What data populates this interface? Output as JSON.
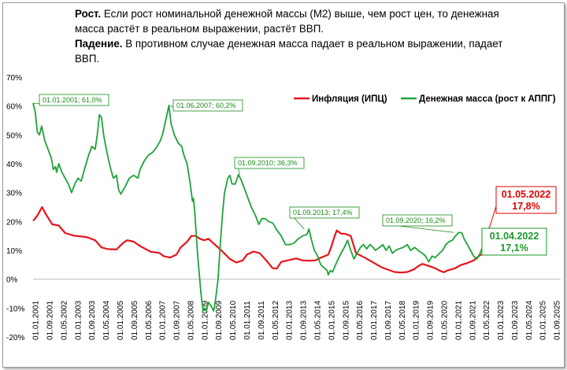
{
  "headline": {
    "growth_label": "Рост.",
    "growth_text": " Если рост номинальной денежной массы (М2) выше, чем рост цен,  то денежная масса растёт в реальном выражении, растёт ВВП.",
    "fall_label": "Падение.",
    "fall_text": " В противном случае денежная масса падает в реальном выражении, падает ВВП."
  },
  "colors": {
    "inflation": "#e8141c",
    "money": "#1fa33a"
  },
  "chart_data": {
    "type": "line",
    "title": "",
    "xlabel": "",
    "ylabel": "",
    "ylim": [
      -20,
      70
    ],
    "y_ticks": [
      70,
      60,
      50,
      40,
      30,
      20,
      10,
      0,
      -10,
      -20
    ],
    "y_tick_labels": [
      "70%",
      "60%",
      "50%",
      "40%",
      "30%",
      "20%",
      "10%",
      "0%",
      "-10%",
      "-20%"
    ],
    "x_range": [
      2001.0,
      2025.667
    ],
    "x_tick_labels": [
      "01.01.2001",
      "01.09.2001",
      "01.05.2002",
      "01.01.2003",
      "01.09.2003",
      "01.05.2004",
      "01.01.2005",
      "01.09.2005",
      "01.05.2006",
      "01.01.2007",
      "01.09.2007",
      "01.05.2008",
      "01.01.2009",
      "01.09.2009",
      "01.05.2010",
      "01.01.2011",
      "01.09.2011",
      "01.05.2012",
      "01.01.2013",
      "01.09.2013",
      "01.05.2014",
      "01.01.2015",
      "01.09.2015",
      "01.05.2016",
      "01.01.2017",
      "01.09.2017",
      "01.05.2018",
      "01.01.2019",
      "01.09.2019",
      "01.05.2020",
      "01.01.2021",
      "01.09.2021",
      "01.05.2022",
      "01.01.2023",
      "01.09.2023",
      "01.05.2024",
      "01.01.2025",
      "01.09.2025"
    ],
    "legend": {
      "position": "top-right"
    },
    "series": [
      {
        "name": "Инфляция (ИПЦ)",
        "color": "#e8141c",
        "points": [
          [
            2001.0,
            20.2
          ],
          [
            2001.2,
            22
          ],
          [
            2001.42,
            25
          ],
          [
            2001.6,
            22.5
          ],
          [
            2001.9,
            19
          ],
          [
            2002.2,
            18.6
          ],
          [
            2002.5,
            16
          ],
          [
            2002.9,
            15.1
          ],
          [
            2003.5,
            14.6
          ],
          [
            2003.9,
            13.5
          ],
          [
            2004.2,
            11
          ],
          [
            2004.5,
            10.4
          ],
          [
            2004.9,
            10.3
          ],
          [
            2005.2,
            12.5
          ],
          [
            2005.4,
            13.5
          ],
          [
            2005.7,
            13
          ],
          [
            2006.0,
            11.5
          ],
          [
            2006.5,
            9.5
          ],
          [
            2006.9,
            9.1
          ],
          [
            2007.1,
            8
          ],
          [
            2007.4,
            7.5
          ],
          [
            2007.7,
            8.5
          ],
          [
            2007.9,
            11
          ],
          [
            2008.2,
            13
          ],
          [
            2008.4,
            15
          ],
          [
            2008.6,
            15
          ],
          [
            2008.8,
            14
          ],
          [
            2009.0,
            13.5
          ],
          [
            2009.2,
            14
          ],
          [
            2009.5,
            12
          ],
          [
            2009.8,
            10
          ],
          [
            2010.2,
            7
          ],
          [
            2010.5,
            5.8
          ],
          [
            2010.8,
            6.5
          ],
          [
            2011.0,
            8.5
          ],
          [
            2011.3,
            9.6
          ],
          [
            2011.6,
            9
          ],
          [
            2011.9,
            6.5
          ],
          [
            2012.2,
            3.8
          ],
          [
            2012.4,
            3.7
          ],
          [
            2012.6,
            6
          ],
          [
            2012.9,
            6.5
          ],
          [
            2013.3,
            7.2
          ],
          [
            2013.6,
            6.5
          ],
          [
            2013.9,
            6.4
          ],
          [
            2014.2,
            6.5
          ],
          [
            2014.5,
            7.6
          ],
          [
            2014.8,
            8.5
          ],
          [
            2014.95,
            11.4
          ],
          [
            2015.1,
            15
          ],
          [
            2015.2,
            16.9
          ],
          [
            2015.4,
            15.8
          ],
          [
            2015.6,
            15.7
          ],
          [
            2015.85,
            15
          ],
          [
            2016.1,
            9
          ],
          [
            2016.5,
            7.5
          ],
          [
            2016.9,
            5.8
          ],
          [
            2017.3,
            4.1
          ],
          [
            2017.6,
            3.3
          ],
          [
            2017.9,
            2.5
          ],
          [
            2018.2,
            2.3
          ],
          [
            2018.5,
            2.5
          ],
          [
            2018.8,
            3.4
          ],
          [
            2019.0,
            4.5
          ],
          [
            2019.2,
            5.3
          ],
          [
            2019.5,
            4.6
          ],
          [
            2019.8,
            3.8
          ],
          [
            2020.0,
            3
          ],
          [
            2020.2,
            2.4
          ],
          [
            2020.4,
            3.1
          ],
          [
            2020.7,
            3.7
          ],
          [
            2021.0,
            4.9
          ],
          [
            2021.3,
            5.6
          ],
          [
            2021.6,
            6.5
          ],
          [
            2021.9,
            8.4
          ],
          [
            2022.1,
            8.7
          ],
          [
            2022.2,
            16.7
          ],
          [
            2022.33,
            17.8
          ]
        ]
      },
      {
        "name": "Денежная масса (рост к АППГ)",
        "color": "#1fa33a",
        "points": [
          [
            2001.0,
            61
          ],
          [
            2001.1,
            58
          ],
          [
            2001.2,
            51
          ],
          [
            2001.3,
            50
          ],
          [
            2001.4,
            53
          ],
          [
            2001.55,
            48
          ],
          [
            2001.7,
            45
          ],
          [
            2001.85,
            42
          ],
          [
            2001.95,
            38
          ],
          [
            2002.05,
            39
          ],
          [
            2002.1,
            37
          ],
          [
            2002.2,
            40
          ],
          [
            2002.35,
            37
          ],
          [
            2002.5,
            35
          ],
          [
            2002.65,
            33
          ],
          [
            2002.8,
            30
          ],
          [
            2002.95,
            33
          ],
          [
            2003.1,
            35
          ],
          [
            2003.25,
            34
          ],
          [
            2003.4,
            38
          ],
          [
            2003.6,
            43
          ],
          [
            2003.75,
            46
          ],
          [
            2003.9,
            45
          ],
          [
            2004.0,
            50
          ],
          [
            2004.1,
            57
          ],
          [
            2004.2,
            56
          ],
          [
            2004.3,
            50
          ],
          [
            2004.45,
            44
          ],
          [
            2004.6,
            39
          ],
          [
            2004.75,
            35
          ],
          [
            2004.9,
            36
          ],
          [
            2005.0,
            31
          ],
          [
            2005.1,
            29.5
          ],
          [
            2005.3,
            32
          ],
          [
            2005.5,
            35
          ],
          [
            2005.7,
            36
          ],
          [
            2005.9,
            35
          ],
          [
            2006.0,
            38
          ],
          [
            2006.2,
            41
          ],
          [
            2006.4,
            43
          ],
          [
            2006.6,
            44
          ],
          [
            2006.8,
            46
          ],
          [
            2006.95,
            48
          ],
          [
            2007.05,
            50
          ],
          [
            2007.2,
            55
          ],
          [
            2007.35,
            60.2
          ],
          [
            2007.45,
            54
          ],
          [
            2007.6,
            50
          ],
          [
            2007.8,
            47
          ],
          [
            2007.95,
            46
          ],
          [
            2008.05,
            43
          ],
          [
            2008.2,
            40
          ],
          [
            2008.35,
            33
          ],
          [
            2008.45,
            27
          ],
          [
            2008.5,
            28
          ],
          [
            2008.55,
            24
          ],
          [
            2008.7,
            8
          ],
          [
            2008.85,
            -5
          ],
          [
            2008.95,
            -11
          ],
          [
            2009.0,
            -10
          ],
          [
            2009.1,
            -11
          ],
          [
            2009.2,
            -8
          ],
          [
            2009.3,
            -9
          ],
          [
            2009.45,
            -11
          ],
          [
            2009.55,
            -6
          ],
          [
            2009.65,
            0
          ],
          [
            2009.75,
            12
          ],
          [
            2009.85,
            22
          ],
          [
            2009.95,
            30
          ],
          [
            2010.1,
            35
          ],
          [
            2010.2,
            36
          ],
          [
            2010.3,
            33
          ],
          [
            2010.45,
            33
          ],
          [
            2010.6,
            36.3
          ],
          [
            2010.75,
            34
          ],
          [
            2010.9,
            31
          ],
          [
            2011.05,
            28
          ],
          [
            2011.2,
            25
          ],
          [
            2011.4,
            22
          ],
          [
            2011.55,
            19
          ],
          [
            2011.7,
            21
          ],
          [
            2011.85,
            21
          ],
          [
            2012.0,
            20
          ],
          [
            2012.2,
            19.5
          ],
          [
            2012.4,
            17
          ],
          [
            2012.6,
            15
          ],
          [
            2012.8,
            12
          ],
          [
            2013.0,
            12
          ],
          [
            2013.2,
            12.5
          ],
          [
            2013.4,
            14
          ],
          [
            2013.6,
            15
          ],
          [
            2013.8,
            15.5
          ],
          [
            2013.9,
            17.4
          ],
          [
            2014.0,
            14
          ],
          [
            2014.15,
            10
          ],
          [
            2014.3,
            8
          ],
          [
            2014.45,
            5
          ],
          [
            2014.6,
            4
          ],
          [
            2014.75,
            3
          ],
          [
            2014.8,
            1.5
          ],
          [
            2014.9,
            3
          ],
          [
            2015.0,
            2.5
          ],
          [
            2015.2,
            6
          ],
          [
            2015.4,
            9
          ],
          [
            2015.55,
            11
          ],
          [
            2015.7,
            13.5
          ],
          [
            2015.85,
            10
          ],
          [
            2016.0,
            7
          ],
          [
            2016.15,
            9
          ],
          [
            2016.3,
            11
          ],
          [
            2016.45,
            12
          ],
          [
            2016.6,
            10.5
          ],
          [
            2016.75,
            12
          ],
          [
            2016.9,
            11
          ],
          [
            2017.0,
            10
          ],
          [
            2017.2,
            11
          ],
          [
            2017.35,
            12
          ],
          [
            2017.5,
            10
          ],
          [
            2017.65,
            11.5
          ],
          [
            2017.8,
            9
          ],
          [
            2017.95,
            10
          ],
          [
            2018.1,
            10.5
          ],
          [
            2018.3,
            11
          ],
          [
            2018.5,
            12
          ],
          [
            2018.65,
            10
          ],
          [
            2018.85,
            11
          ],
          [
            2019.0,
            10
          ],
          [
            2019.2,
            9
          ],
          [
            2019.35,
            8
          ],
          [
            2019.5,
            6
          ],
          [
            2019.65,
            8
          ],
          [
            2019.8,
            7.5
          ],
          [
            2020.0,
            9
          ],
          [
            2020.15,
            10
          ],
          [
            2020.3,
            12
          ],
          [
            2020.45,
            13
          ],
          [
            2020.6,
            13.5
          ],
          [
            2020.75,
            15
          ],
          [
            2020.9,
            16.2
          ],
          [
            2021.05,
            16
          ],
          [
            2021.15,
            14
          ],
          [
            2021.3,
            12
          ],
          [
            2021.45,
            10
          ],
          [
            2021.6,
            8
          ],
          [
            2021.75,
            7
          ],
          [
            2021.9,
            9
          ],
          [
            2022.05,
            12
          ],
          [
            2022.15,
            14
          ],
          [
            2022.25,
            17.1
          ]
        ]
      }
    ],
    "annotations": [
      {
        "text": "01.01.2001; 61,0%",
        "series": "money",
        "x": 2001.0,
        "y": 61.0
      },
      {
        "text": "01.06.2007; 60,2%",
        "series": "money",
        "x": 2007.42,
        "y": 60.2
      },
      {
        "text": "01.09.2010; 36,3%",
        "series": "money",
        "x": 2010.67,
        "y": 36.3
      },
      {
        "text": "01.09.2013; 17,4%",
        "series": "money",
        "x": 2013.67,
        "y": 17.4
      },
      {
        "text": "01.09.2020; 16,2%",
        "series": "money",
        "x": 2020.67,
        "y": 16.2
      }
    ],
    "callouts": [
      {
        "date": "01.05.2022",
        "value": "17,8%",
        "series": "inflation",
        "x": 2022.33,
        "y": 17.8
      },
      {
        "date": "01.04.2022",
        "value": "17,1%",
        "series": "money",
        "x": 2022.25,
        "y": 17.1
      }
    ]
  }
}
